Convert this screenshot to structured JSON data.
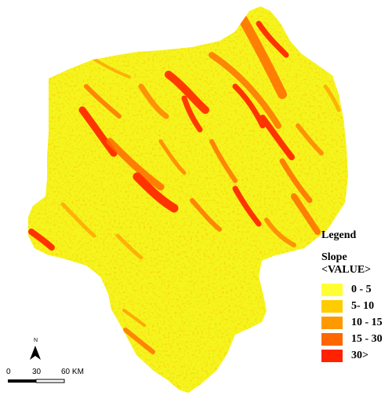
{
  "legend": {
    "title": "Legend",
    "subtitle": "Slope",
    "field": "<VALUE>",
    "classes": [
      {
        "label": "0 - 5",
        "color": "#ffff33"
      },
      {
        "label": "5- 10",
        "color": "#ffcc00"
      },
      {
        "label": "10 - 15",
        "color": "#ff9900"
      },
      {
        "label": "15 - 30",
        "color": "#ff6600"
      },
      {
        "label": "30>",
        "color": "#ff2200"
      }
    ]
  },
  "north_arrow": {
    "letter": "N",
    "icon": "north-arrow-icon"
  },
  "scale_bar": {
    "labels": [
      "0",
      "30",
      "60 KM"
    ]
  },
  "colors": {
    "base": "#f5f51e",
    "background": "#ffffff"
  }
}
